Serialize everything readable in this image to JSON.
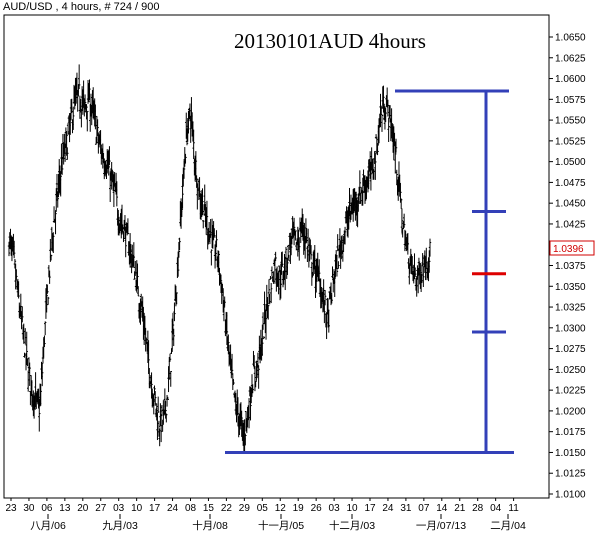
{
  "header": {
    "text": "AUD/USD , 4 hours, # 724 / 900"
  },
  "chart_data": {
    "type": "candlestick",
    "title": "20130101AUD 4hours",
    "y_axis": {
      "side": "right",
      "ylim": [
        1.01,
        1.067
      ],
      "ticks": [
        "1.0650",
        "1.0625",
        "1.0600",
        "1.0575",
        "1.0550",
        "1.0525",
        "1.0500",
        "1.0475",
        "1.0450",
        "1.0425",
        "1.0400",
        "1.0375",
        "1.0350",
        "1.0325",
        "1.0300",
        "1.0275",
        "1.0250",
        "1.0225",
        "1.0200",
        "1.0175",
        "1.0150",
        "1.0125",
        "1.0100"
      ]
    },
    "current_price": "1.0396",
    "current_price_color": "#d00000",
    "x_ticks": [
      "23",
      "30",
      "06",
      "13",
      "20",
      "27",
      "03",
      "10",
      "17",
      "24",
      "08",
      "15",
      "22",
      "29",
      "05",
      "12",
      "19",
      "26",
      "03",
      "10",
      "17",
      "24",
      "31",
      "07",
      "14",
      "21",
      "28",
      "04",
      "11"
    ],
    "month_labels": [
      "八月/06",
      "九月/03",
      "十月/08",
      "十一月/05",
      "十二月/03",
      "一月/07/13",
      "二月/04"
    ],
    "price_series": [
      1.0405,
      1.0385,
      1.034,
      1.03,
      1.026,
      1.023,
      1.021,
      1.0205,
      1.029,
      1.036,
      1.042,
      1.046,
      1.05,
      1.052,
      1.055,
      1.0575,
      1.058,
      1.0565,
      1.0575,
      1.056,
      1.053,
      1.051,
      1.05,
      1.048,
      1.046,
      1.043,
      1.042,
      1.04,
      1.038,
      1.035,
      1.032,
      1.028,
      1.024,
      1.021,
      1.0185,
      1.019,
      1.023,
      1.029,
      1.037,
      1.045,
      1.053,
      1.056,
      1.05,
      1.046,
      1.044,
      1.042,
      1.04,
      1.039,
      1.035,
      1.03,
      1.025,
      1.021,
      1.019,
      1.017,
      1.02,
      1.024,
      1.025,
      1.028,
      1.032,
      1.035,
      1.038,
      1.036,
      1.037,
      1.039,
      1.041,
      1.04,
      1.042,
      1.041,
      1.038,
      1.037,
      1.036,
      1.033,
      1.031,
      1.035,
      1.038,
      1.04,
      1.042,
      1.044,
      1.045,
      1.046,
      1.047,
      1.048,
      1.049,
      1.052,
      1.056,
      1.057,
      1.055,
      1.052,
      1.047,
      1.042,
      1.039,
      1.037,
      1.036,
      1.037,
      1.038,
      1.039
    ],
    "annotations": {
      "color": "#3340b8",
      "midline_color": "#dd0000",
      "high_level": 1.0585,
      "low_level": 1.015,
      "levels": [
        1.044,
        1.0365,
        1.0295
      ]
    }
  }
}
